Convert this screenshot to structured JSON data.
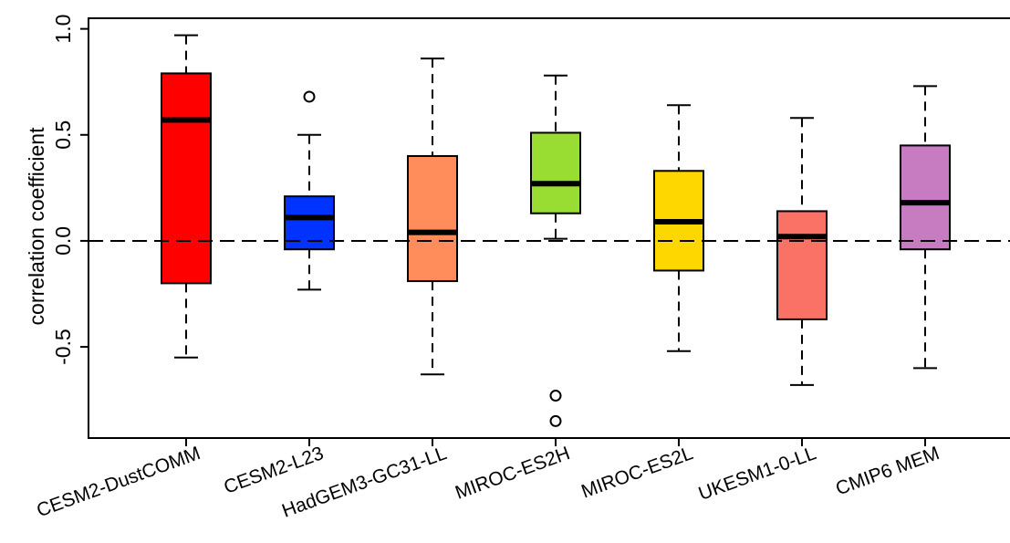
{
  "chart_data": {
    "type": "boxplot",
    "title": "",
    "xlabel": "",
    "ylabel": "correlation  coefficient",
    "ylim": [
      -0.93,
      1.05
    ],
    "yticks": [
      -0.5,
      0.0,
      0.5,
      1.0
    ],
    "ytick_labels": [
      "-0.5",
      "0.0",
      "0.5",
      "1.0"
    ],
    "reference_line": {
      "y": 0.0,
      "style": "dashed"
    },
    "grid": false,
    "legend": "none",
    "categories": [
      "CESM2-DustCOMM",
      "CESM2-L23",
      "HadGEM3-GC31-LL",
      "MIROC-ES2H",
      "MIROC-ES2L",
      "UKESM1-0-LL",
      "CMIP6 MEM"
    ],
    "boxes": [
      {
        "name": "CESM2-DustCOMM",
        "color": "#ff0000",
        "whisker_low": -0.55,
        "q1": -0.2,
        "median": 0.57,
        "q3": 0.79,
        "whisker_high": 0.97,
        "outliers": []
      },
      {
        "name": "CESM2-L23",
        "color": "#0033ff",
        "whisker_low": -0.23,
        "q1": -0.04,
        "median": 0.11,
        "q3": 0.21,
        "whisker_high": 0.5,
        "outliers": [
          0.68
        ]
      },
      {
        "name": "HadGEM3-GC31-LL",
        "color": "#ff8c5a",
        "whisker_low": -0.63,
        "q1": -0.19,
        "median": 0.04,
        "q3": 0.4,
        "whisker_high": 0.86,
        "outliers": []
      },
      {
        "name": "MIROC-ES2H",
        "color": "#99dd33",
        "whisker_low": 0.01,
        "q1": 0.13,
        "median": 0.27,
        "q3": 0.51,
        "whisker_high": 0.78,
        "outliers": [
          -0.73,
          -0.85
        ]
      },
      {
        "name": "MIROC-ES2L",
        "color": "#ffd700",
        "whisker_low": -0.52,
        "q1": -0.14,
        "median": 0.09,
        "q3": 0.33,
        "whisker_high": 0.64,
        "outliers": []
      },
      {
        "name": "UKESM1-0-LL",
        "color": "#fa7266",
        "whisker_low": -0.68,
        "q1": -0.37,
        "median": 0.02,
        "q3": 0.14,
        "whisker_high": 0.58,
        "outliers": []
      },
      {
        "name": "CMIP6 MEM",
        "color": "#c77cc2",
        "whisker_low": -0.6,
        "q1": -0.04,
        "median": 0.18,
        "q3": 0.45,
        "whisker_high": 0.73,
        "outliers": []
      }
    ]
  }
}
